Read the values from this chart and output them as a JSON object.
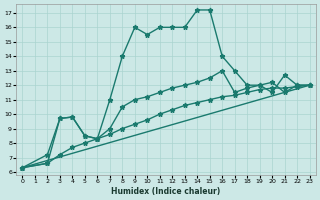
{
  "xlabel": "Humidex (Indice chaleur)",
  "background_color": "#cce8e6",
  "grid_color": "#aad4d0",
  "line_color": "#1a7a6e",
  "xlim": [
    -0.5,
    23.5
  ],
  "ylim": [
    5.8,
    17.6
  ],
  "yticks": [
    6,
    7,
    8,
    9,
    10,
    11,
    12,
    13,
    14,
    15,
    16,
    17
  ],
  "xticks": [
    0,
    1,
    2,
    3,
    4,
    5,
    6,
    7,
    8,
    9,
    10,
    11,
    12,
    13,
    14,
    15,
    16,
    17,
    18,
    19,
    20,
    21,
    22,
    23
  ],
  "series1_x": [
    0,
    2,
    3,
    4,
    5,
    6,
    7,
    8,
    9,
    10,
    11,
    12,
    13,
    14,
    15,
    16,
    17,
    18,
    19,
    20,
    21,
    22,
    23
  ],
  "series1_y": [
    6.3,
    7.2,
    9.7,
    9.8,
    8.5,
    8.3,
    11.0,
    14.0,
    16.0,
    15.5,
    16.0,
    16.0,
    16.0,
    17.2,
    17.2,
    14.0,
    13.0,
    12.0,
    12.0,
    11.5,
    12.7,
    12.0,
    12.0
  ],
  "series2_x": [
    0,
    2,
    3,
    4,
    5,
    6,
    7,
    8,
    9,
    10,
    11,
    12,
    13,
    14,
    15,
    16,
    17,
    18,
    19,
    20,
    21,
    22,
    23
  ],
  "series2_y": [
    6.3,
    6.6,
    9.7,
    9.8,
    8.5,
    8.3,
    9.0,
    10.5,
    11.0,
    11.2,
    11.5,
    11.8,
    12.0,
    12.2,
    12.5,
    13.0,
    11.5,
    11.8,
    12.0,
    12.2,
    11.5,
    12.0,
    12.0
  ],
  "series3_x": [
    0,
    2,
    3,
    4,
    5,
    6,
    7,
    8,
    9,
    10,
    11,
    12,
    13,
    14,
    15,
    16,
    17,
    18,
    19,
    20,
    21,
    22,
    23
  ],
  "series3_y": [
    6.3,
    6.6,
    7.2,
    7.7,
    8.0,
    8.3,
    8.6,
    9.0,
    9.3,
    9.6,
    10.0,
    10.3,
    10.6,
    10.8,
    11.0,
    11.2,
    11.3,
    11.5,
    11.7,
    11.8,
    11.8,
    11.9,
    12.0
  ],
  "series4_x": [
    0,
    23
  ],
  "series4_y": [
    6.3,
    12.0
  ]
}
